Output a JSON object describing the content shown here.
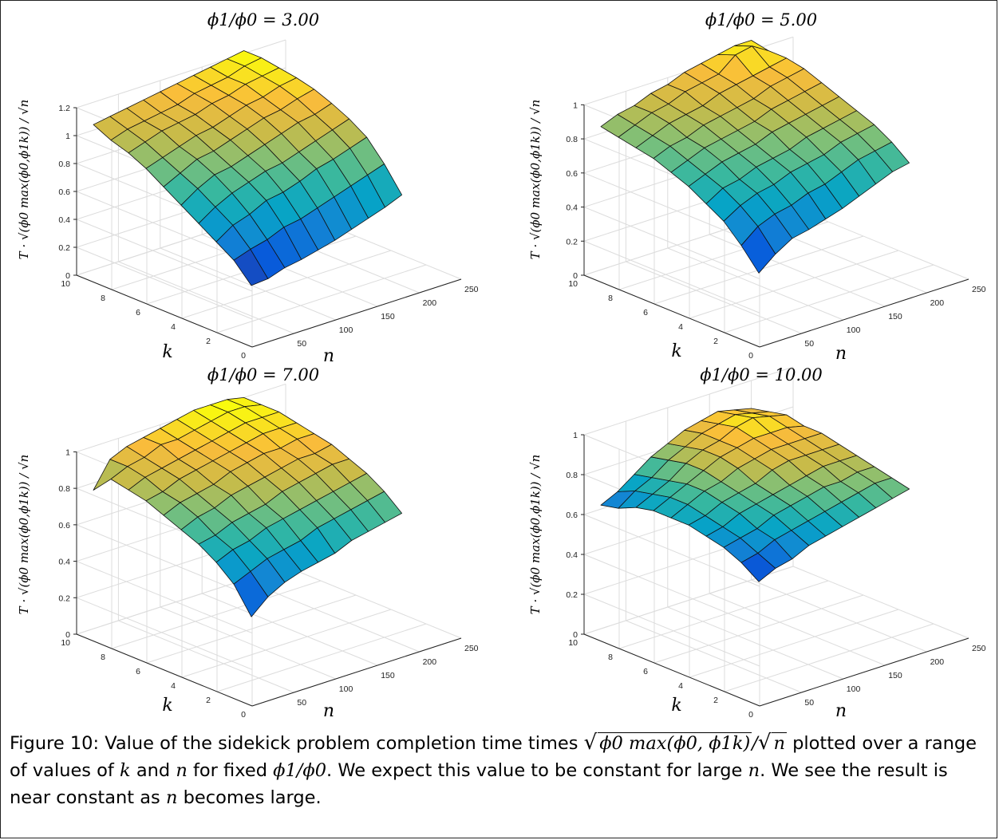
{
  "chart_data": [
    {
      "type": "surface",
      "title": "ϕ1/ϕ0 = 3.00",
      "xlabel": "n",
      "ylabel": "k",
      "zlabel": "T · √(ϕ0 max(ϕ0,ϕ1k)) / √n",
      "x_ticks": [
        "50",
        "100",
        "150",
        "200",
        "250"
      ],
      "y_ticks": [
        "0",
        "2",
        "4",
        "6",
        "8",
        "10"
      ],
      "z_ticks": [
        "0",
        "0.2",
        "0.4",
        "0.6",
        "0.8",
        "1",
        "1.2"
      ],
      "xlim": [
        0,
        250
      ],
      "ylim": [
        0,
        10
      ],
      "zlim": [
        0,
        1.2
      ],
      "x": [
        20,
        40,
        60,
        80,
        100,
        120,
        140,
        160,
        180,
        200
      ],
      "y": [
        1,
        2,
        3,
        4,
        5,
        6,
        7,
        8,
        9,
        10
      ],
      "z": [
        [
          0.35,
          0.36,
          0.4,
          0.42,
          0.45,
          0.48,
          0.52,
          0.56,
          0.6,
          0.65
        ],
        [
          0.48,
          0.52,
          0.55,
          0.6,
          0.62,
          0.66,
          0.7,
          0.74,
          0.78,
          0.82
        ],
        [
          0.56,
          0.64,
          0.68,
          0.74,
          0.76,
          0.8,
          0.85,
          0.88,
          0.92,
          0.96
        ],
        [
          0.64,
          0.72,
          0.78,
          0.82,
          0.86,
          0.88,
          0.92,
          0.96,
          1.0,
          1.04
        ],
        [
          0.72,
          0.8,
          0.86,
          0.88,
          0.92,
          0.96,
          1.0,
          1.04,
          1.06,
          1.1
        ],
        [
          0.8,
          0.86,
          0.92,
          0.94,
          0.98,
          1.02,
          1.06,
          1.08,
          1.12,
          1.15
        ],
        [
          0.88,
          0.92,
          0.96,
          1.0,
          1.02,
          1.06,
          1.1,
          1.12,
          1.16,
          1.18
        ],
        [
          0.94,
          0.98,
          1.02,
          1.04,
          1.06,
          1.1,
          1.12,
          1.16,
          1.18,
          1.2
        ],
        [
          0.98,
          1.02,
          1.04,
          1.06,
          1.08,
          1.12,
          1.14,
          1.16,
          1.2,
          1.22
        ],
        [
          1.04,
          1.06,
          1.08,
          1.1,
          1.12,
          1.14,
          1.16,
          1.18,
          1.2,
          1.22
        ]
      ]
    },
    {
      "type": "surface",
      "title": "ϕ1/ϕ0 = 5.00",
      "xlabel": "n",
      "ylabel": "k",
      "zlabel": "T · √(ϕ0 max(ϕ0,ϕ1k)) / √n",
      "x_ticks": [
        "50",
        "100",
        "150",
        "200",
        "250"
      ],
      "y_ticks": [
        "0",
        "2",
        "4",
        "6",
        "8",
        "10"
      ],
      "z_ticks": [
        "0",
        "0.2",
        "0.4",
        "0.6",
        "0.8",
        "1"
      ],
      "xlim": [
        0,
        250
      ],
      "ylim": [
        0,
        10
      ],
      "zlim": [
        0,
        1.1
      ],
      "x": [
        20,
        40,
        60,
        80,
        100,
        120,
        140,
        160,
        180,
        200
      ],
      "y": [
        1,
        2,
        3,
        4,
        5,
        6,
        7,
        8,
        9,
        10
      ],
      "z": [
        [
          0.36,
          0.44,
          0.5,
          0.52,
          0.55,
          0.58,
          0.62,
          0.66,
          0.7,
          0.72
        ],
        [
          0.48,
          0.56,
          0.6,
          0.62,
          0.66,
          0.68,
          0.72,
          0.76,
          0.78,
          0.8
        ],
        [
          0.58,
          0.64,
          0.68,
          0.7,
          0.74,
          0.76,
          0.78,
          0.82,
          0.84,
          0.86
        ],
        [
          0.64,
          0.7,
          0.72,
          0.76,
          0.78,
          0.8,
          0.84,
          0.86,
          0.88,
          0.9
        ],
        [
          0.7,
          0.74,
          0.78,
          0.8,
          0.82,
          0.86,
          0.88,
          0.9,
          0.92,
          0.94
        ],
        [
          0.74,
          0.78,
          0.82,
          0.84,
          0.86,
          0.88,
          0.92,
          0.94,
          0.96,
          0.98
        ],
        [
          0.78,
          0.82,
          0.84,
          0.88,
          0.9,
          0.92,
          0.94,
          0.98,
          1.0,
          1.02
        ],
        [
          0.8,
          0.84,
          0.88,
          0.9,
          0.92,
          0.96,
          0.98,
          1.0,
          1.02,
          1.04
        ],
        [
          0.82,
          0.86,
          0.9,
          0.92,
          0.96,
          0.98,
          1.0,
          1.08,
          1.1,
          1.04
        ],
        [
          0.84,
          0.88,
          0.9,
          0.94,
          0.96,
          1.0,
          1.02,
          1.04,
          1.06,
          1.06
        ]
      ]
    },
    {
      "type": "surface",
      "title": "ϕ1/ϕ0 = 7.00",
      "xlabel": "n",
      "ylabel": "k",
      "zlabel": "T · √(ϕ0 max(ϕ0,ϕ1k)) / √n",
      "x_ticks": [
        "50",
        "100",
        "150",
        "200",
        "250"
      ],
      "y_ticks": [
        "0",
        "2",
        "4",
        "6",
        "8",
        "10"
      ],
      "z_ticks": [
        "0",
        "0.2",
        "0.4",
        "0.6",
        "0.8",
        "1"
      ],
      "xlim": [
        0,
        250
      ],
      "ylim": [
        0,
        10
      ],
      "zlim": [
        0,
        1.05
      ],
      "x": [
        20,
        40,
        60,
        80,
        100,
        120,
        140,
        160,
        180,
        200
      ],
      "y": [
        1,
        2,
        3,
        4,
        5,
        6,
        7,
        8,
        9,
        10
      ],
      "z": [
        [
          0.42,
          0.5,
          0.55,
          0.58,
          0.6,
          0.62,
          0.66,
          0.68,
          0.7,
          0.72
        ],
        [
          0.56,
          0.6,
          0.64,
          0.66,
          0.68,
          0.72,
          0.74,
          0.76,
          0.78,
          0.8
        ],
        [
          0.64,
          0.68,
          0.7,
          0.74,
          0.76,
          0.78,
          0.8,
          0.82,
          0.84,
          0.86
        ],
        [
          0.7,
          0.72,
          0.76,
          0.78,
          0.8,
          0.84,
          0.86,
          0.88,
          0.9,
          0.9
        ],
        [
          0.74,
          0.78,
          0.8,
          0.84,
          0.86,
          0.88,
          0.9,
          0.92,
          0.92,
          0.94
        ],
        [
          0.78,
          0.82,
          0.84,
          0.86,
          0.9,
          0.92,
          0.94,
          0.94,
          0.96,
          0.96
        ],
        [
          0.82,
          0.84,
          0.88,
          0.9,
          0.92,
          0.94,
          0.96,
          0.98,
          0.98,
          0.98
        ],
        [
          0.84,
          0.88,
          0.9,
          0.92,
          0.94,
          0.96,
          0.98,
          1.0,
          1.0,
          1.0
        ],
        [
          0.86,
          0.9,
          0.92,
          0.96,
          0.96,
          0.98,
          1.0,
          1.02,
          1.02,
          1.0
        ],
        [
          0.76,
          0.9,
          0.94,
          0.96,
          0.98,
          1.0,
          1.02,
          1.02,
          1.02,
          1.0
        ]
      ]
    },
    {
      "type": "surface",
      "title": "ϕ1/ϕ0 = 10.00",
      "xlabel": "n",
      "ylabel": "k",
      "zlabel": "T · √(ϕ0 max(ϕ0,ϕ1k)) / √n",
      "x_ticks": [
        "50",
        "100",
        "150",
        "200",
        "250"
      ],
      "y_ticks": [
        "0",
        "2",
        "4",
        "6",
        "8",
        "10"
      ],
      "z_ticks": [
        "0",
        "0.2",
        "0.4",
        "0.6",
        "0.8",
        "1"
      ],
      "xlim": [
        0,
        250
      ],
      "ylim": [
        0,
        10
      ],
      "zlim": [
        0,
        1.0
      ],
      "x": [
        20,
        40,
        60,
        80,
        100,
        120,
        140,
        160,
        180,
        200
      ],
      "y": [
        1,
        2,
        3,
        4,
        5,
        6,
        7,
        8,
        9,
        10
      ],
      "z": [
        [
          0.56,
          0.6,
          0.62,
          0.66,
          0.68,
          0.7,
          0.72,
          0.74,
          0.76,
          0.78
        ],
        [
          0.62,
          0.64,
          0.68,
          0.7,
          0.72,
          0.74,
          0.76,
          0.78,
          0.8,
          0.8
        ],
        [
          0.66,
          0.68,
          0.7,
          0.74,
          0.76,
          0.78,
          0.8,
          0.8,
          0.82,
          0.82
        ],
        [
          0.68,
          0.7,
          0.74,
          0.76,
          0.78,
          0.8,
          0.82,
          0.84,
          0.84,
          0.84
        ],
        [
          0.7,
          0.72,
          0.76,
          0.78,
          0.8,
          0.84,
          0.86,
          0.86,
          0.86,
          0.86
        ],
        [
          0.7,
          0.74,
          0.78,
          0.8,
          0.84,
          0.86,
          0.88,
          0.88,
          0.88,
          0.88
        ],
        [
          0.7,
          0.74,
          0.78,
          0.82,
          0.86,
          0.88,
          0.9,
          0.9,
          0.9,
          0.88
        ],
        [
          0.68,
          0.72,
          0.76,
          0.82,
          0.86,
          0.88,
          0.92,
          0.94,
          0.92,
          0.9
        ],
        [
          0.64,
          0.7,
          0.74,
          0.8,
          0.84,
          0.88,
          0.9,
          0.92,
          0.9,
          0.88
        ],
        [
          0.62,
          0.66,
          0.72,
          0.78,
          0.82,
          0.86,
          0.88,
          0.9,
          0.88,
          0.86
        ]
      ]
    }
  ],
  "caption": {
    "label": "Figure 10:",
    "seg1": "Value of the sidekick problem completion time times",
    "sqrt_arg": "ϕ0 max(ϕ0, ϕ1k)",
    "seg_div": "/",
    "sqrt_n": "n",
    "seg2": "plotted over a range of values of",
    "var_k": "k",
    "seg3": "and",
    "var_n": "n",
    "seg4": "for fixed",
    "ratio": "ϕ1/ϕ0",
    "seg5": ". We expect this value to be constant for large",
    "var_n2": "n",
    "seg6": ". We see the result is near constant as",
    "var_n3": "n",
    "seg7": "becomes large."
  }
}
